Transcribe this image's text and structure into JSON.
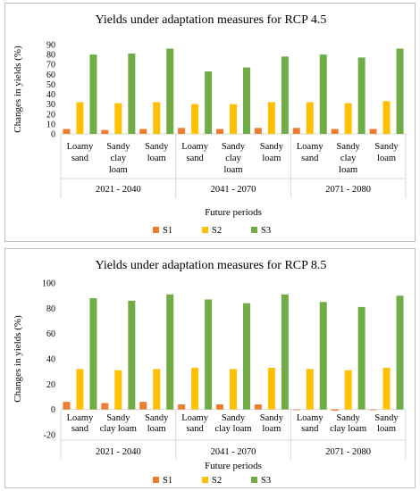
{
  "chart_data": [
    {
      "type": "bar",
      "title": "Yields under adaptation measures for RCP 4.5",
      "ylabel": "Changes in yields (%)",
      "xlabel": "Future periods",
      "ylim": [
        0,
        90
      ],
      "ytick_step": 10,
      "y_ticks": [
        "0",
        "10",
        "20",
        "30",
        "40",
        "50",
        "60",
        "70",
        "80",
        "90"
      ],
      "groups": [
        "2021 - 2040",
        "2041 - 2070",
        "2071 - 2080"
      ],
      "categories": [
        [
          "Loamy",
          "sand"
        ],
        [
          "Sandy",
          "clay",
          "loam"
        ],
        [
          "Sandy",
          "loam"
        ],
        [
          "Loamy",
          "sand"
        ],
        [
          "Sandy",
          "clay",
          "loam"
        ],
        [
          "Sandy",
          "loam"
        ],
        [
          "Loamy",
          "sand"
        ],
        [
          "Sandy",
          "clay",
          "loam"
        ],
        [
          "Sandy",
          "loam"
        ]
      ],
      "series": [
        {
          "name": "S1",
          "color": "#ed7d31",
          "values": [
            5,
            4,
            5,
            6,
            5,
            6,
            6,
            5,
            5
          ]
        },
        {
          "name": "S2",
          "color": "#ffc000",
          "values": [
            32,
            31,
            32,
            30,
            30,
            32,
            32,
            31,
            33
          ]
        },
        {
          "name": "S3",
          "color": "#70ad47",
          "values": [
            80,
            81,
            86,
            63,
            67,
            78,
            80,
            77,
            86
          ]
        }
      ],
      "grid": false,
      "legend_position": "bottom"
    },
    {
      "type": "bar",
      "title": "Yields under adaptation measures for RCP 8.5",
      "ylabel": "Changes in yields (%)",
      "xlabel": "Future periods",
      "ylim": [
        -20,
        100
      ],
      "ytick_step": 20,
      "y_ticks": [
        "-20",
        "0",
        "20",
        "40",
        "60",
        "80",
        "100"
      ],
      "groups": [
        "2021 - 2040",
        "2041 - 2070",
        "2071 - 2080"
      ],
      "categories": [
        [
          "Loamy",
          "sand"
        ],
        [
          "Sandy",
          "clay loam"
        ],
        [
          "Sandy",
          "loam"
        ],
        [
          "Loamy",
          "sand"
        ],
        [
          "Sandy",
          "clay loam"
        ],
        [
          "Sandy",
          "loam"
        ],
        [
          "Loamy",
          "sand"
        ],
        [
          "Sandy",
          "clay loam"
        ],
        [
          "Sandy",
          "loam"
        ]
      ],
      "series": [
        {
          "name": "S1",
          "color": "#ed7d31",
          "values": [
            6,
            5,
            6,
            4,
            4,
            4,
            -0.5,
            -1,
            -0.5
          ]
        },
        {
          "name": "S2",
          "color": "#ffc000",
          "values": [
            32,
            31,
            32,
            33,
            32,
            33,
            32,
            31,
            33
          ]
        },
        {
          "name": "S3",
          "color": "#70ad47",
          "values": [
            88,
            86,
            91,
            87,
            84,
            91,
            85,
            81,
            90
          ]
        }
      ],
      "grid": false,
      "legend_position": "bottom"
    }
  ]
}
